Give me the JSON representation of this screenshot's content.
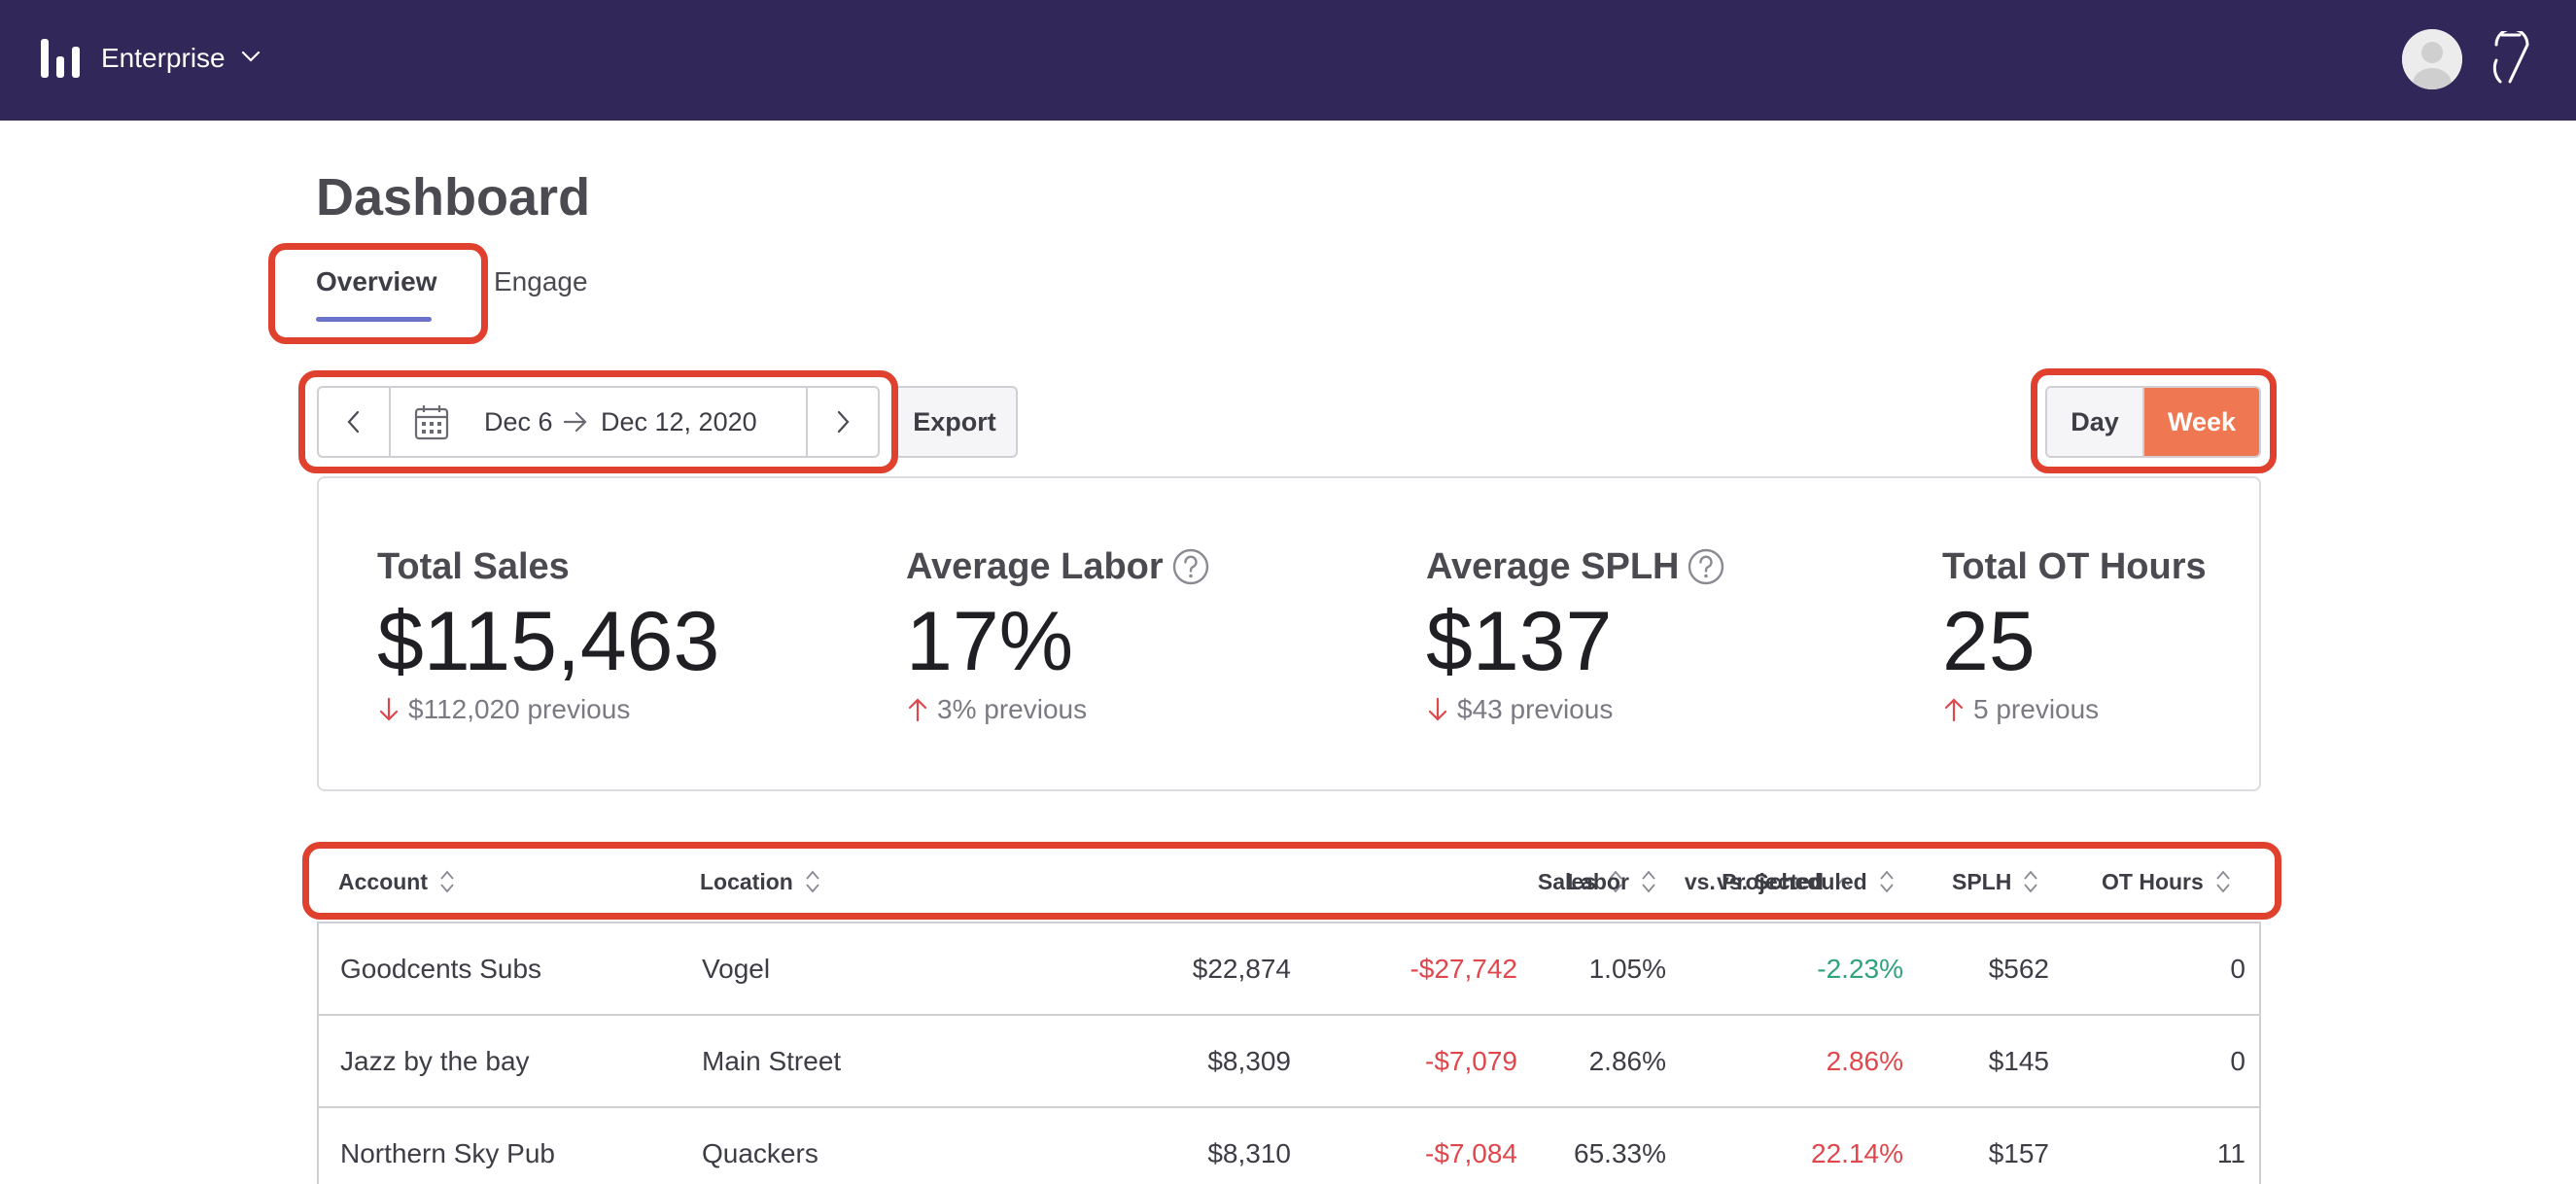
{
  "topbar": {
    "org_name": "Enterprise",
    "icons": [
      "bar-logo-icon",
      "chevron-down-icon",
      "avatar",
      "brand-7-icon"
    ]
  },
  "page": {
    "title": "Dashboard",
    "tabs": [
      {
        "label": "Overview",
        "active": true
      },
      {
        "label": "Engage",
        "active": false
      }
    ]
  },
  "date_range": {
    "start": "Dec 6",
    "end": "Dec 12, 2020"
  },
  "export_label": "Export",
  "period_toggle": {
    "options": [
      "Day",
      "Week"
    ],
    "selected": "Week"
  },
  "stats": [
    {
      "title": "Total Sales",
      "value": "$115,463",
      "previous": "$112,020 previous",
      "trend": "down",
      "help": false
    },
    {
      "title": "Average Labor",
      "value": "17%",
      "previous": "3% previous",
      "trend": "up",
      "help": true
    },
    {
      "title": "Average SPLH",
      "value": "$137",
      "previous": "$43 previous",
      "trend": "down",
      "help": true
    },
    {
      "title": "Total OT Hours",
      "value": "25",
      "previous": "5 previous",
      "trend": "up",
      "help": false
    }
  ],
  "table": {
    "columns": [
      {
        "label": "Account",
        "sort": "none"
      },
      {
        "label": "Location",
        "sort": "none"
      },
      {
        "label": "Sales",
        "sort": "none"
      },
      {
        "label": "vs. Projected",
        "sort": "asc"
      },
      {
        "label": "Labor",
        "sort": "none"
      },
      {
        "label": "vs. Scheduled",
        "sort": "none"
      },
      {
        "label": "SPLH",
        "sort": "none"
      },
      {
        "label": "OT Hours",
        "sort": "none"
      }
    ],
    "rows": [
      [
        "Goodcents Subs",
        "Vogel",
        "$22,874",
        "-$27,742",
        "1.05%",
        "-2.23%",
        "$562",
        "0"
      ],
      [
        "Jazz by the bay",
        "Main Street",
        "$8,309",
        "-$7,079",
        "2.86%",
        "2.86%",
        "$145",
        "0"
      ],
      [
        "Northern Sky Pub",
        "Quackers",
        "$8,310",
        "-$7,084",
        "65.33%",
        "22.14%",
        "$157",
        "11"
      ]
    ]
  },
  "colors": {
    "topbar": "#312759",
    "accent_orange": "#ef7751",
    "tab_underline": "#6b72c9",
    "negative": "#e0474c",
    "positive": "#2fa37a",
    "annotation": "#e0412e"
  }
}
